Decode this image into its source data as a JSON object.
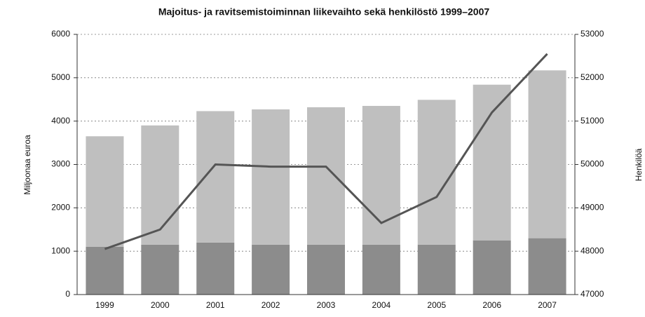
{
  "chart_data": {
    "type": "bar",
    "stacked": true,
    "title": "Majoitus- ja ravitsemistoiminnan liikevaihto sekä henkilöstö 1999–2007",
    "y_label": "Miljoonaa euroa",
    "y2_label": "Henkilöä",
    "categories": [
      "1999",
      "2000",
      "2001",
      "2002",
      "2003",
      "2004",
      "2005",
      "2006",
      "2007"
    ],
    "series": [
      {
        "type": "bar",
        "color": "#8c8c8c",
        "values": [
          1100,
          1150,
          1200,
          1150,
          1150,
          1150,
          1150,
          1250,
          1300
        ]
      },
      {
        "type": "bar",
        "color": "#bfbfbf",
        "values": [
          2550,
          2750,
          3030,
          3120,
          3170,
          3200,
          3340,
          3590,
          3870
        ]
      },
      {
        "type": "line",
        "axis": "y2",
        "color": "#555555",
        "values": [
          48050,
          48500,
          50000,
          49950,
          49950,
          48650,
          49250,
          51200,
          52550
        ]
      }
    ],
    "ylim": [
      0,
      6000
    ],
    "yticks": [
      0,
      1000,
      2000,
      3000,
      4000,
      5000,
      6000
    ],
    "y2lim": [
      47000,
      53000
    ],
    "y2ticks": [
      47000,
      48000,
      49000,
      50000,
      51000,
      52000,
      53000
    ],
    "grid": true
  }
}
